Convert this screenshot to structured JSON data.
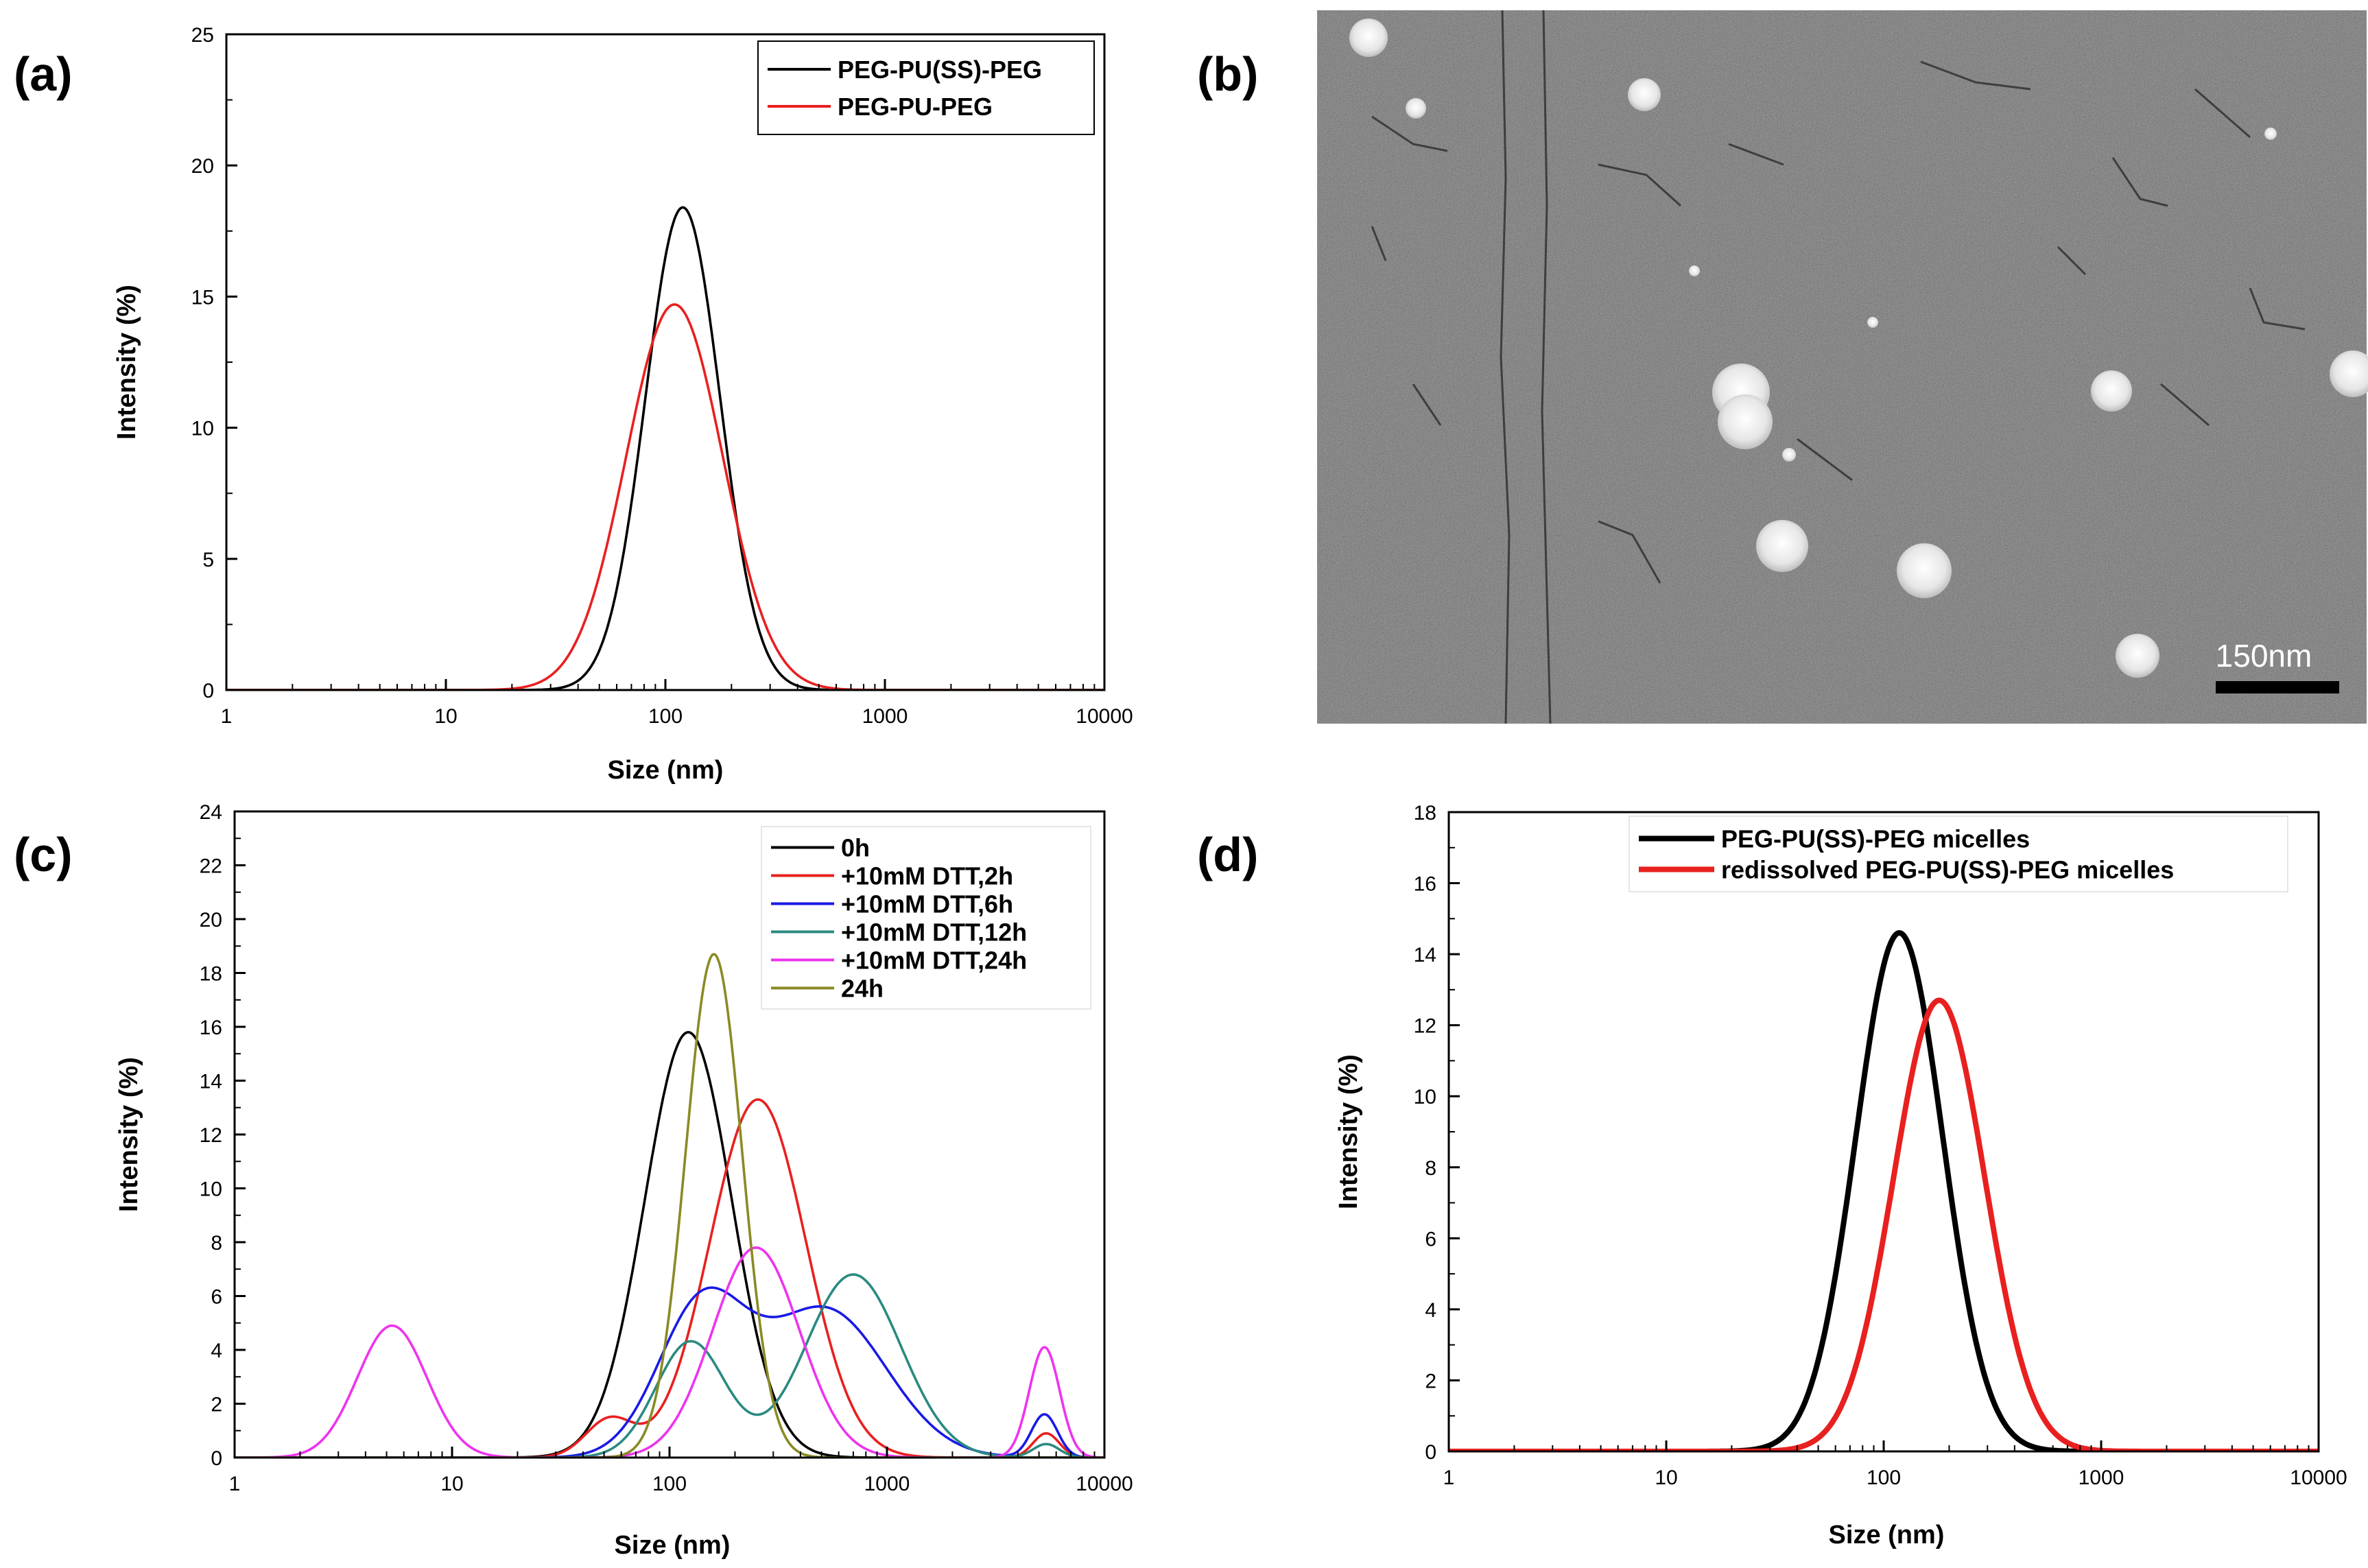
{
  "colors": {
    "black": "#000000",
    "red": "#e8201f",
    "blue": "#1a1ae6",
    "teal": "#2a8a80",
    "magenta": "#ee33ee",
    "olive": "#8a8a26",
    "sem_background": "#6b6b6b",
    "sem_particle": "#f2f2f2"
  },
  "panel_b": {
    "label": "(b)",
    "type": "sem_image",
    "scale_bar_label": "150nm"
  },
  "chart_data": [
    {
      "id": "a",
      "label": "(a)",
      "type": "line",
      "xscale": "log",
      "xlabel": "Size (nm)",
      "ylabel": "Intensity (%)",
      "xlim": [
        1,
        10000
      ],
      "ylim": [
        0,
        25
      ],
      "xticks": [
        1,
        10,
        100,
        1000,
        10000
      ],
      "xtick_labels": [
        "1",
        "10",
        "100",
        "1000",
        "10000"
      ],
      "yticks": [
        0,
        5,
        10,
        15,
        20,
        25
      ],
      "ytick_labels": [
        "0",
        "5",
        "10",
        "15",
        "20",
        "25"
      ],
      "legend_position": "top-right",
      "series": [
        {
          "name": "PEG-PU(SS)-PEG",
          "color": "#000000",
          "peaks": [
            {
              "center": 120,
              "height": 18.4,
              "sigma": 0.17
            }
          ]
        },
        {
          "name": "PEG-PU-PEG",
          "color": "#e8201f",
          "peaks": [
            {
              "center": 110,
              "height": 14.7,
              "sigma": 0.22
            }
          ]
        }
      ]
    },
    {
      "id": "c",
      "label": "(c)",
      "type": "line",
      "xscale": "log",
      "xlabel": "Size (nm)",
      "ylabel": "Intensity (%)",
      "xlim": [
        1,
        10000
      ],
      "ylim": [
        0,
        24
      ],
      "xticks": [
        1,
        10,
        100,
        1000,
        10000
      ],
      "xtick_labels": [
        "1",
        "10",
        "100",
        "1000",
        "10000"
      ],
      "yticks": [
        0,
        2,
        4,
        6,
        8,
        10,
        12,
        14,
        16,
        18,
        20,
        22,
        24
      ],
      "ytick_labels": [
        "0",
        "2",
        "4",
        "6",
        "8",
        "10",
        "12",
        "14",
        "16",
        "18",
        "20",
        "22",
        "24"
      ],
      "legend_position": "top-right",
      "series": [
        {
          "name": "0h",
          "color": "#000000",
          "peaks": [
            {
              "center": 122,
              "height": 15.8,
              "sigma": 0.2
            }
          ]
        },
        {
          "name": "+10mM DTT,2h",
          "color": "#e8201f",
          "peaks": [
            {
              "center": 53,
              "height": 1.4,
              "sigma": 0.11
            },
            {
              "center": 255,
              "height": 13.3,
              "sigma": 0.22
            },
            {
              "center": 5400,
              "height": 0.9,
              "sigma": 0.06
            }
          ]
        },
        {
          "name": "+10mM DTT,6h",
          "color": "#1a1ae6",
          "peaks": [
            {
              "center": 140,
              "height": 5.5,
              "sigma": 0.2
            },
            {
              "center": 520,
              "height": 5.5,
              "sigma": 0.28
            },
            {
              "center": 5300,
              "height": 1.6,
              "sigma": 0.06
            }
          ]
        },
        {
          "name": "+10mM DTT,12h",
          "color": "#2a8a80",
          "peaks": [
            {
              "center": 125,
              "height": 4.3,
              "sigma": 0.16
            },
            {
              "center": 700,
              "height": 6.8,
              "sigma": 0.22
            },
            {
              "center": 5400,
              "height": 0.5,
              "sigma": 0.06
            }
          ]
        },
        {
          "name": "+10mM DTT,24h",
          "color": "#ee33ee",
          "peaks": [
            {
              "center": 5.3,
              "height": 4.9,
              "sigma": 0.16
            },
            {
              "center": 250,
              "height": 7.8,
              "sigma": 0.2
            },
            {
              "center": 5300,
              "height": 4.1,
              "sigma": 0.07
            }
          ]
        },
        {
          "name": "24h",
          "color": "#8a8a26",
          "peaks": [
            {
              "center": 160,
              "height": 18.7,
              "sigma": 0.13
            }
          ]
        }
      ]
    },
    {
      "id": "d",
      "label": "(d)",
      "type": "line",
      "xscale": "log",
      "xlabel": "Size (nm)",
      "ylabel": "Intensity (%)",
      "xlim": [
        1,
        10000
      ],
      "ylim": [
        0,
        18
      ],
      "xticks": [
        1,
        10,
        100,
        1000,
        10000
      ],
      "xtick_labels": [
        "1",
        "10",
        "100",
        "1000",
        "10000"
      ],
      "yticks": [
        0,
        2,
        4,
        6,
        8,
        10,
        12,
        14,
        16,
        18
      ],
      "ytick_labels": [
        "0",
        "2",
        "4",
        "6",
        "8",
        "10",
        "12",
        "14",
        "16",
        "18"
      ],
      "legend_position": "top",
      "series": [
        {
          "name": "PEG-PU(SS)-PEG micelles",
          "color": "#000000",
          "peaks": [
            {
              "center": 118,
              "height": 14.6,
              "sigma": 0.2
            }
          ]
        },
        {
          "name": "redissolved PEG-PU(SS)-PEG micelles",
          "color": "#e8201f",
          "peaks": [
            {
              "center": 180,
              "height": 12.7,
              "sigma": 0.21
            }
          ]
        }
      ]
    }
  ]
}
